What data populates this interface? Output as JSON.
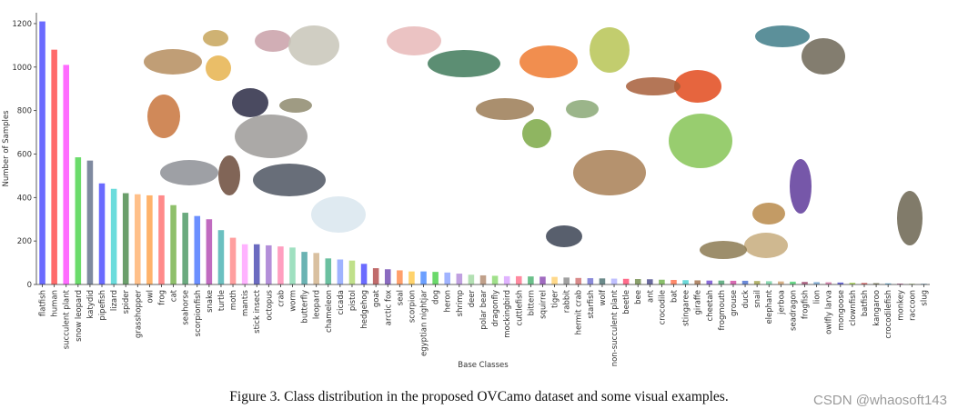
{
  "caption": "Figure 3. Class distribution in the proposed OVCamo dataset and some visual examples.",
  "watermark": "CSDN @whaosoft143",
  "chart_data": {
    "type": "bar",
    "title": "",
    "xlabel": "Base Classes",
    "ylabel": "Number of Samples",
    "ylim": [
      0,
      1250
    ],
    "yticks": [
      0,
      200,
      400,
      600,
      800,
      1000,
      1200
    ],
    "grid": false,
    "categories": [
      "flatfish",
      "human",
      "succulent plant",
      "snow leopard",
      "katydid",
      "pipefish",
      "lizard",
      "spider",
      "grasshopper",
      "owl",
      "frog",
      "cat",
      "seahorse",
      "scorpionfish",
      "snake",
      "turtle",
      "moth",
      "mantis",
      "stick insect",
      "octopus",
      "crab",
      "worm",
      "butterfly",
      "leopard",
      "chameleon",
      "cicada",
      "pistol",
      "hedgehog",
      "goat",
      "arctic fox",
      "seal",
      "scorpion",
      "egyptian nightjar",
      "dog",
      "heron",
      "shrimp",
      "deer",
      "polar bear",
      "dragonfly",
      "mockingbird",
      "cuttlefish",
      "bittern",
      "squirrel",
      "tiger",
      "rabbit",
      "hermit crab",
      "starfish",
      "wolf",
      "non-succulent plant",
      "beetle",
      "bee",
      "ant",
      "crocodile",
      "bat",
      "stingaree",
      "giraffe",
      "cheetah",
      "frogmouth",
      "grouse",
      "duck",
      "snail",
      "elephant",
      "jerboa",
      "seadragon",
      "frogfish",
      "lion",
      "owlfly larva",
      "mongoose",
      "clownfish",
      "batfish",
      "kangaroo",
      "crocodilefish",
      "monkey",
      "raccoon",
      "slug"
    ],
    "values": [
      1210,
      1080,
      1010,
      585,
      570,
      465,
      440,
      420,
      415,
      410,
      410,
      365,
      330,
      315,
      300,
      250,
      215,
      185,
      185,
      180,
      175,
      170,
      150,
      145,
      120,
      115,
      110,
      95,
      75,
      70,
      65,
      60,
      60,
      58,
      55,
      50,
      45,
      42,
      40,
      38,
      38,
      37,
      36,
      35,
      32,
      30,
      29,
      28,
      27,
      26,
      25,
      24,
      22,
      21,
      20,
      19,
      18,
      18,
      17,
      17,
      16,
      15,
      14,
      13,
      12,
      11,
      10,
      9,
      8,
      7,
      6,
      5,
      4,
      3,
      3
    ],
    "colors": [
      "#6b6bff",
      "#ff6b6b",
      "#ff6bff",
      "#6bdc6b",
      "#7f8aa0",
      "#6b6bff",
      "#6bdcdc",
      "#6b9f6b",
      "#ffc08a",
      "#ffb36b",
      "#ff8a8a",
      "#8fc06b",
      "#6baa7f",
      "#6b8fff",
      "#c06bc0",
      "#6bc0c0",
      "#ff9f9f",
      "#ffb3ff",
      "#6b6bc0",
      "#b38fd9",
      "#ff9fc0",
      "#9fe0c0",
      "#6bb3b3",
      "#d9c0a0",
      "#6bc0a0",
      "#9fb3ff",
      "#c0e08a",
      "#6b6bff",
      "#c06b6b",
      "#8a6bc0",
      "#ff9f6b",
      "#ffd36b",
      "#6b9fff",
      "#6bd96b",
      "#a0b3ff",
      "#c0a0e0",
      "#b3e0b3",
      "#c0a08a",
      "#a0e08a",
      "#e0b3ff",
      "#ff8aa0",
      "#6bc08a",
      "#a06bc0",
      "#ffd98a",
      "#a0a0a0",
      "#d98a8a",
      "#8a8ad9",
      "#6b8a8a",
      "#c0c0ff",
      "#ff6b8a",
      "#8aa06b",
      "#6b6b9f",
      "#8ac06b",
      "#ff8a6b",
      "#6bd9d9",
      "#b38a6b",
      "#8a6bd9",
      "#6bb38a",
      "#d96bb3",
      "#6b8ad9",
      "#b3b36b",
      "#8ad9b3",
      "#d9b38a",
      "#6bd98a",
      "#b36b8a",
      "#8ab3d9",
      "#d98ab3",
      "#6b6bd9",
      "#b3d96b",
      "#d96b6b",
      "#8a8a6b",
      "#6bb3d9",
      "#c06b9f",
      "#9fc06b",
      "#6b9fc0"
    ]
  },
  "thumbnails": [
    {
      "name": "tortoise-photo",
      "color": "#b58d5e"
    },
    {
      "name": "lizard-photo",
      "color": "#c7a55a"
    },
    {
      "name": "spider-photo",
      "color": "#c9a0a8"
    },
    {
      "name": "succulent-plant-photo",
      "color": "#c8c6b8"
    },
    {
      "name": "owl-photo",
      "color": "#e7b9b9"
    },
    {
      "name": "seahorse-photo",
      "color": "#e6b34e"
    },
    {
      "name": "dog-photo",
      "color": "#c8743c"
    },
    {
      "name": "stingray-photo",
      "color": "#2a2a44"
    },
    {
      "name": "grasshopper-photo",
      "color": "#8e8a6d"
    },
    {
      "name": "snow-leopard-photo",
      "color": "#9c9a98"
    },
    {
      "name": "tapir-photo",
      "color": "#8d8f95"
    },
    {
      "name": "okapi-photo",
      "color": "#6b4a3a"
    },
    {
      "name": "wolf-photo",
      "color": "#4d5562"
    },
    {
      "name": "arctic-fox-photo",
      "color": "#d9e6ef"
    },
    {
      "name": "green-lizard-photo",
      "color": "#3f7a5a"
    },
    {
      "name": "crab-photo",
      "color": "#ef7a30"
    },
    {
      "name": "nightjar-photo",
      "color": "#9b7b55"
    },
    {
      "name": "frog-photo",
      "color": "#7ba845"
    },
    {
      "name": "mantis-photo",
      "color": "#8aa875"
    },
    {
      "name": "leaf-insect-photo",
      "color": "#b7c455"
    },
    {
      "name": "red-frog-photo",
      "color": "#e24a1c"
    },
    {
      "name": "scorpionfish-photo",
      "color": "#a75e3a"
    },
    {
      "name": "fish-photo",
      "color": "#3f7d88"
    },
    {
      "name": "katydid-photo",
      "color": "#86c456"
    },
    {
      "name": "grouse-photo",
      "color": "#a87f55"
    },
    {
      "name": "cheetah-photo",
      "color": "#c7ac7d"
    },
    {
      "name": "snail-photo",
      "color": "#5e3a9a"
    },
    {
      "name": "giraffe-photo",
      "color": "#b98a4a"
    },
    {
      "name": "duck-photo",
      "color": "#6b6450"
    },
    {
      "name": "owl-tree-photo",
      "color": "#6d6656"
    },
    {
      "name": "moth-photo",
      "color": "#3b4354"
    },
    {
      "name": "crocodile-photo",
      "color": "#8c7a52"
    }
  ]
}
